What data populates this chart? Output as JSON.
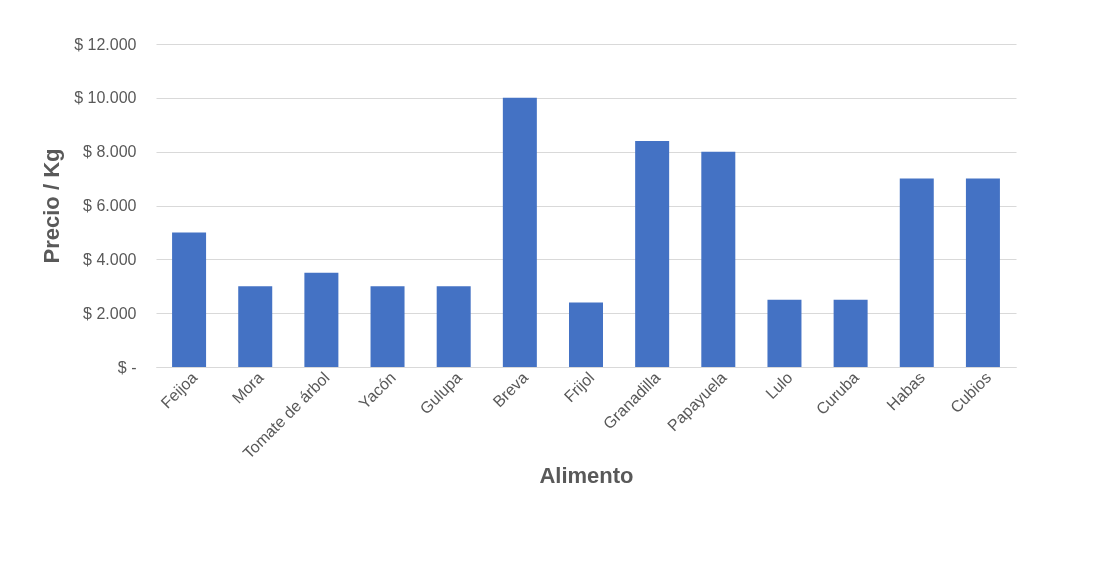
{
  "chart_data": {
    "type": "bar",
    "xlabel": "Alimento",
    "ylabel": "Precio / Kg",
    "categories": [
      "Feijoa",
      "Mora",
      "Tomate de árbol",
      "Yacón",
      "Gulupa",
      "Breva",
      "Frijol",
      "Granadilla",
      "Papayuela",
      "Lulo",
      "Curuba",
      "Habas",
      "Cubios"
    ],
    "values": [
      5000,
      3000,
      3500,
      3000,
      3000,
      10000,
      2400,
      8400,
      8000,
      2500,
      2500,
      7000,
      7000
    ],
    "color": "#4472c4",
    "ylim": [
      0,
      12000
    ],
    "yticks": [
      {
        "value": 0,
        "label": "$ -"
      },
      {
        "value": 2000,
        "label": "$ 2.000"
      },
      {
        "value": 4000,
        "label": "$ 4.000"
      },
      {
        "value": 6000,
        "label": "$ 6.000"
      },
      {
        "value": 8000,
        "label": "$ 8.000"
      },
      {
        "value": 10000,
        "label": "$ 10.000"
      },
      {
        "value": 12000,
        "label": "$ 12.000"
      }
    ],
    "grid": "y"
  }
}
